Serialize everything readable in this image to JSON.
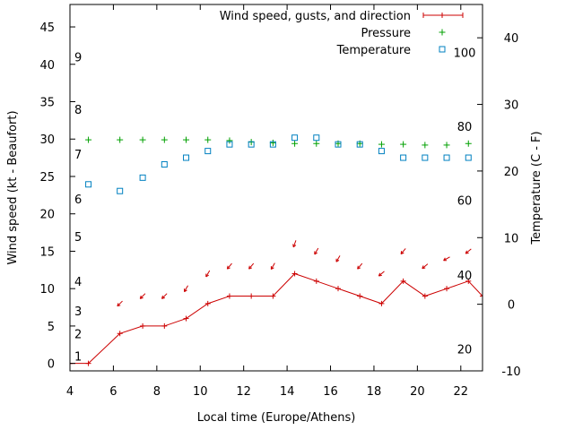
{
  "chart_data": {
    "type": "line",
    "xlabel": "Local time (Europe/Athens)",
    "ylabel_left": "Wind speed (kt - Beaufort)",
    "ylabel_right": "Temperature (C - F)",
    "xlim": [
      4,
      23
    ],
    "ylim_left": [
      -1,
      48
    ],
    "ylim_right": [
      -10,
      45
    ],
    "x_ticks": [
      4,
      6,
      8,
      10,
      12,
      14,
      16,
      18,
      20,
      22
    ],
    "y_left_ticks": [
      0,
      5,
      10,
      15,
      20,
      25,
      30,
      35,
      40,
      45
    ],
    "y_right_ticks": [
      -10,
      0,
      10,
      20,
      30,
      40
    ],
    "beaufort_labels": [
      {
        "label": "1",
        "kt": 1
      },
      {
        "label": "2",
        "kt": 4
      },
      {
        "label": "3",
        "kt": 7
      },
      {
        "label": "4",
        "kt": 11
      },
      {
        "label": "5",
        "kt": 17
      },
      {
        "label": "6",
        "kt": 22
      },
      {
        "label": "7",
        "kt": 28
      },
      {
        "label": "8",
        "kt": 34
      },
      {
        "label": "9",
        "kt": 41
      }
    ],
    "fahrenheit_labels": [
      {
        "label": "20",
        "temp_c": -6.7
      },
      {
        "label": "40",
        "temp_c": 4.4
      },
      {
        "label": "60",
        "temp_c": 15.6
      },
      {
        "label": "80",
        "temp_c": 26.7
      },
      {
        "label": "100",
        "temp_c": 37.8
      }
    ],
    "series": [
      {
        "name": "Wind speed, gusts, and direction",
        "color": "#cc0000",
        "axis": "left",
        "x": [
          4,
          4.85,
          6.3,
          7.35,
          8.35,
          9.35,
          10.35,
          11.35,
          12.35,
          13.35,
          14.35,
          15.35,
          16.35,
          17.35,
          18.35,
          19.35,
          20.35,
          21.35,
          22.35,
          23
        ],
        "values": [
          0,
          0,
          4,
          5,
          5,
          6,
          8,
          9,
          9,
          9,
          12,
          11,
          10,
          9,
          8,
          11,
          9,
          10,
          11,
          9
        ]
      },
      {
        "name": "Pressure",
        "color": "#00a000",
        "axis": "left",
        "x": [
          4.85,
          6.3,
          7.35,
          8.35,
          9.35,
          10.35,
          11.35,
          12.35,
          13.35,
          14.35,
          15.35,
          16.35,
          17.35,
          18.35,
          19.35,
          20.35,
          21.35,
          22.35
        ],
        "values": [
          29.9,
          29.9,
          29.9,
          29.9,
          29.9,
          29.9,
          29.8,
          29.6,
          29.5,
          29.4,
          29.4,
          29.4,
          29.4,
          29.3,
          29.3,
          29.2,
          29.2,
          29.4
        ]
      },
      {
        "name": "Temperature",
        "color": "#0080c0",
        "axis": "right",
        "x": [
          4.85,
          6.3,
          7.35,
          8.35,
          9.35,
          10.35,
          11.35,
          12.35,
          13.35,
          14.35,
          15.35,
          16.35,
          17.35,
          18.35,
          19.35,
          20.35,
          21.35,
          22.35
        ],
        "values": [
          18,
          17,
          19,
          21,
          22,
          23,
          24,
          24,
          24,
          25,
          25,
          24,
          24,
          23,
          22,
          22,
          22,
          22
        ]
      }
    ],
    "wind_direction_arrows": {
      "x": [
        6.3,
        7.35,
        8.35,
        9.35,
        10.35,
        11.35,
        12.35,
        13.35,
        14.35,
        15.35,
        16.35,
        17.35,
        18.35,
        19.35,
        20.35,
        21.35,
        22.35
      ],
      "y": [
        8,
        9,
        9,
        10,
        12,
        13,
        13,
        13,
        16,
        15,
        14,
        13,
        12,
        15,
        13,
        14,
        15
      ],
      "direction_deg": [
        135,
        135,
        135,
        150,
        150,
        140,
        140,
        150,
        160,
        150,
        150,
        140,
        130,
        140,
        130,
        120,
        130
      ]
    },
    "legend_position": "top-right"
  }
}
